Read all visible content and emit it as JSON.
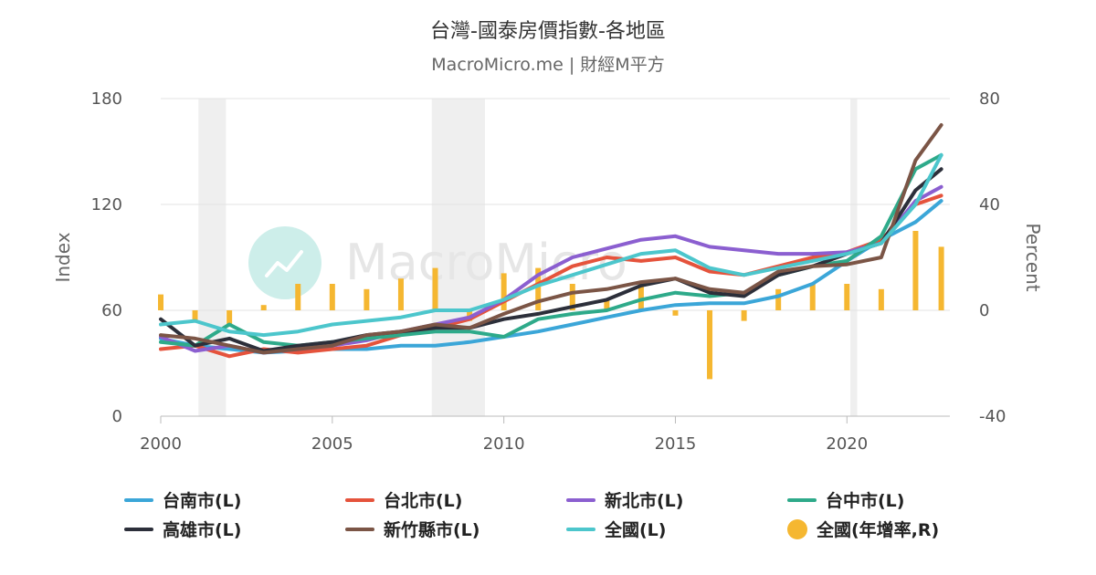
{
  "header": {
    "title": "台灣-國泰房價指數-各地區",
    "subtitle": "MacroMicro.me | 財經M平方"
  },
  "watermark": {
    "text": "MacroMicro"
  },
  "chart_data": {
    "type": "line",
    "title": "台灣-國泰房價指數-各地區",
    "subtitle": "MacroMicro.me | 財經M平方",
    "ylabel_left": "Index",
    "ylabel_right": "Percent",
    "ylim_left": [
      0,
      180
    ],
    "ylim_right": [
      -40,
      80
    ],
    "left_ticks": [
      "0",
      "60",
      "120",
      "180"
    ],
    "right_ticks": [
      "-40",
      "0",
      "40",
      "80"
    ],
    "xlim": [
      2000,
      2023
    ],
    "x_ticks": [
      "2000",
      "2005",
      "2010",
      "2015",
      "2020"
    ],
    "grid": "horizontal",
    "legend_position": "bottom",
    "recession_bands": [
      [
        2001.1,
        2001.9
      ],
      [
        2007.9,
        2009.45
      ],
      [
        2020.1,
        2020.3
      ]
    ],
    "x": [
      2000,
      2001,
      2002,
      2003,
      2004,
      2005,
      2006,
      2007,
      2008,
      2009,
      2010,
      2011,
      2012,
      2013,
      2014,
      2015,
      2016,
      2017,
      2018,
      2019,
      2020,
      2021,
      2022,
      2022.75
    ],
    "series": [
      {
        "name": "台南市(L)",
        "color": "#3ba6d8",
        "axis": "left",
        "values": [
          44,
          40,
          38,
          36,
          37,
          38,
          38,
          40,
          40,
          42,
          45,
          48,
          52,
          56,
          60,
          63,
          64,
          64,
          68,
          75,
          88,
          100,
          110,
          122
        ]
      },
      {
        "name": "台北市(L)",
        "color": "#e5533c",
        "axis": "left",
        "values": [
          38,
          40,
          34,
          38,
          36,
          38,
          40,
          46,
          50,
          55,
          65,
          75,
          85,
          90,
          88,
          90,
          82,
          80,
          85,
          90,
          93,
          100,
          120,
          125
        ]
      },
      {
        "name": "新北市(L)",
        "color": "#8b5fd0",
        "axis": "left",
        "values": [
          45,
          37,
          40,
          36,
          38,
          40,
          43,
          48,
          52,
          56,
          66,
          80,
          90,
          95,
          100,
          102,
          96,
          94,
          92,
          92,
          93,
          98,
          122,
          130
        ]
      },
      {
        "name": "台中市(L)",
        "color": "#2eaa8a",
        "axis": "left",
        "values": [
          42,
          40,
          52,
          42,
          40,
          42,
          44,
          46,
          48,
          48,
          45,
          55,
          58,
          60,
          66,
          70,
          68,
          70,
          80,
          85,
          88,
          102,
          140,
          148
        ]
      },
      {
        "name": "高雄市(L)",
        "color": "#2c2f3a",
        "axis": "left",
        "values": [
          55,
          40,
          44,
          37,
          40,
          42,
          46,
          48,
          50,
          50,
          55,
          58,
          62,
          66,
          74,
          78,
          70,
          68,
          80,
          85,
          92,
          98,
          128,
          140
        ]
      },
      {
        "name": "新竹縣市(L)",
        "color": "#7b5546",
        "axis": "left",
        "values": [
          46,
          44,
          40,
          36,
          38,
          40,
          46,
          48,
          52,
          50,
          58,
          65,
          70,
          72,
          76,
          78,
          72,
          70,
          82,
          85,
          86,
          90,
          145,
          165
        ]
      },
      {
        "name": "全國(L)",
        "color": "#4cc6cc",
        "axis": "left",
        "values": [
          52,
          54,
          48,
          46,
          48,
          52,
          54,
          56,
          60,
          60,
          66,
          74,
          80,
          86,
          92,
          94,
          84,
          80,
          84,
          88,
          92,
          98,
          120,
          148
        ]
      },
      {
        "name": "全國(年增率,R)",
        "color": "#f5b731",
        "axis": "right",
        "type": "bar",
        "values": [
          6,
          -4,
          -6,
          2,
          10,
          10,
          8,
          12,
          16,
          -4,
          14,
          16,
          10,
          4,
          10,
          -2,
          -26,
          -4,
          8,
          10,
          10,
          8,
          30,
          24
        ]
      }
    ]
  },
  "legend": [
    {
      "label": "台南市(L)",
      "color": "#3ba6d8",
      "marker": "line"
    },
    {
      "label": "台北市(L)",
      "color": "#e5533c",
      "marker": "line"
    },
    {
      "label": "新北市(L)",
      "color": "#8b5fd0",
      "marker": "line"
    },
    {
      "label": "台中市(L)",
      "color": "#2eaa8a",
      "marker": "line"
    },
    {
      "label": "高雄市(L)",
      "color": "#2c2f3a",
      "marker": "line"
    },
    {
      "label": "新竹縣市(L)",
      "color": "#7b5546",
      "marker": "line"
    },
    {
      "label": "全國(L)",
      "color": "#4cc6cc",
      "marker": "line"
    },
    {
      "label": "全國(年增率,R)",
      "color": "#f5b731",
      "marker": "dot"
    }
  ]
}
